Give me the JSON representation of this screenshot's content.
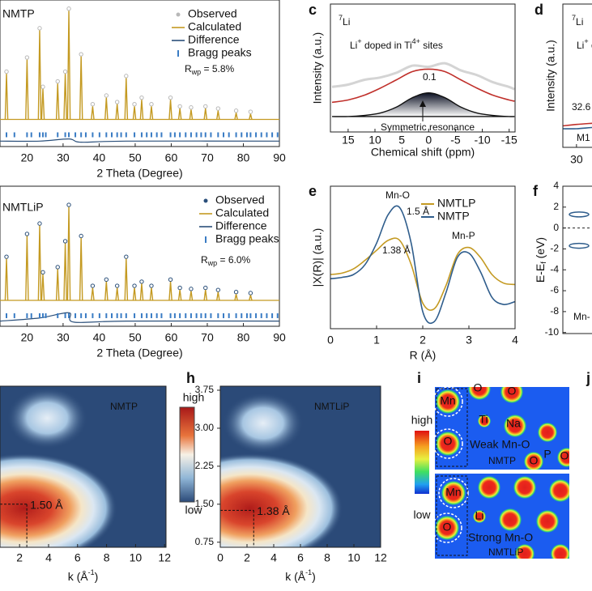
{
  "chart_data": [
    {
      "type": "xrd",
      "label": "NMTP",
      "x_label": "2 Theta (Degree)",
      "xlim": [
        12.5,
        90
      ],
      "ylim": [
        -0.25,
        1.1
      ],
      "xticks": [
        20,
        30,
        40,
        50,
        60,
        70,
        80,
        90
      ],
      "rwp": [
        "R",
        "wp",
        " = 5.8%"
      ],
      "series": [
        {
          "name": "Observed",
          "color": "#b8b8b8",
          "style": "dots",
          "x": [
            14.3,
            20,
            23.5,
            24.4,
            28.5,
            30.6,
            31.6,
            35,
            38.2,
            42,
            45,
            47.5,
            49.8,
            51.8,
            54.5,
            59.8,
            62.4,
            65.5,
            69.5,
            73,
            78,
            82
          ],
          "values": [
            0.44,
            0.57,
            0.84,
            0.3,
            0.35,
            0.44,
            1.02,
            0.6,
            0.14,
            0.22,
            0.16,
            0.4,
            0.14,
            0.2,
            0.14,
            0.2,
            0.12,
            0.11,
            0.12,
            0.1,
            0.08,
            0.07
          ]
        },
        {
          "name": "Calculated",
          "color": "#c49a22",
          "style": "spikes",
          "x": [
            14.3,
            20,
            23.5,
            24.4,
            28.5,
            30.6,
            31.6,
            35,
            38.2,
            42,
            45,
            47.5,
            49.8,
            51.8,
            54.5,
            59.8,
            62.4,
            65.5,
            69.5,
            73,
            78,
            82
          ],
          "values": [
            0.42,
            0.55,
            0.82,
            0.28,
            0.33,
            0.42,
            1.0,
            0.58,
            0.12,
            0.2,
            0.14,
            0.38,
            0.12,
            0.18,
            0.12,
            0.18,
            0.1,
            0.09,
            0.1,
            0.08,
            0.06,
            0.05
          ]
        },
        {
          "name": "Difference",
          "color": "#2a4f7a",
          "style": "line",
          "x": [
            12.5,
            23.5,
            31.6,
            35,
            47.5,
            90
          ],
          "values": [
            -0.2,
            -0.2,
            -0.18,
            -0.21,
            -0.2,
            -0.2
          ]
        },
        {
          "name": "Bragg peaks",
          "color": "#3a7cc4",
          "style": "ticks",
          "x": [
            14.3,
            16.5,
            20,
            21.2,
            23.5,
            24.4,
            25.2,
            28.5,
            30.6,
            31.6,
            33.4,
            35,
            36.3,
            38.2,
            40.1,
            42,
            43.5,
            45,
            46.1,
            47.5,
            49.8,
            51.8,
            53.2,
            54.5,
            56,
            57.3,
            59.8,
            61,
            62.4,
            64,
            65.5,
            67,
            68.3,
            69.5,
            71,
            73,
            74.5,
            76,
            78,
            79.5,
            81,
            82,
            83.5,
            85,
            86.5,
            88,
            89.5
          ]
        }
      ]
    },
    {
      "type": "xrd",
      "label": "NMTLiP",
      "x_label": "2 Theta (Degree)",
      "xlim": [
        12.5,
        90
      ],
      "ylim": [
        -0.25,
        1.1
      ],
      "xticks": [
        20,
        30,
        40,
        50,
        60,
        70,
        80,
        90
      ],
      "rwp": [
        "R",
        "wp",
        " = 6.0%"
      ],
      "series": [
        {
          "name": "Observed",
          "color": "#2a4f7a",
          "style": "dots",
          "x": [
            14.3,
            20,
            23.5,
            24.4,
            28.5,
            30.6,
            31.6,
            35,
            38.2,
            42,
            45,
            47.5,
            49.8,
            51.8,
            54.5,
            59.8,
            62.4,
            65.5,
            69.5,
            73,
            78,
            82
          ],
          "values": [
            0.42,
            0.64,
            0.74,
            0.27,
            0.32,
            0.57,
            0.92,
            0.62,
            0.14,
            0.2,
            0.14,
            0.42,
            0.14,
            0.18,
            0.14,
            0.2,
            0.12,
            0.11,
            0.12,
            0.1,
            0.08,
            0.07
          ]
        },
        {
          "name": "Calculated",
          "color": "#c49a22",
          "style": "spikes",
          "x": [
            14.3,
            20,
            23.5,
            24.4,
            28.5,
            30.6,
            31.6,
            35,
            38.2,
            42,
            45,
            47.5,
            49.8,
            51.8,
            54.5,
            59.8,
            62.4,
            65.5,
            69.5,
            73,
            78,
            82
          ],
          "values": [
            0.4,
            0.62,
            0.72,
            0.25,
            0.3,
            0.55,
            0.9,
            0.6,
            0.12,
            0.18,
            0.12,
            0.4,
            0.12,
            0.16,
            0.12,
            0.18,
            0.1,
            0.09,
            0.1,
            0.08,
            0.06,
            0.05
          ]
        },
        {
          "name": "Difference",
          "color": "#2a4f7a",
          "style": "line",
          "x": [
            12.5,
            23.5,
            31.6,
            33,
            47.5,
            90
          ],
          "values": [
            -0.2,
            -0.17,
            -0.12,
            -0.21,
            -0.2,
            -0.2
          ]
        },
        {
          "name": "Bragg peaks",
          "color": "#3a7cc4",
          "style": "ticks",
          "x": [
            14.3,
            16.5,
            20,
            21.2,
            23.5,
            24.4,
            25.2,
            28.5,
            30.6,
            31.6,
            33.4,
            35,
            36.3,
            38.2,
            40.1,
            42,
            43.5,
            45,
            46.1,
            47.5,
            49.8,
            51.8,
            53.2,
            54.5,
            56,
            57.3,
            59.8,
            61,
            62.4,
            64,
            65.5,
            67,
            68.3,
            69.5,
            71,
            73,
            74.5,
            76,
            78,
            79.5,
            81,
            82,
            83.5,
            85,
            86.5,
            88,
            89.5
          ]
        }
      ]
    },
    {
      "type": "line",
      "letter": "c",
      "x_label": "Chemical shift (ppm)",
      "y_label": "Intensity (a.u.)",
      "xlim": [
        18.3,
        -16.1
      ],
      "ylim": [
        -0.08,
        1
      ],
      "xticks": [
        15,
        10,
        5,
        0,
        -5,
        -10,
        -15
      ],
      "texts": {
        "nucleus": [
          "7",
          "Li"
        ],
        "site": [
          "Li",
          "+",
          " doped in Ti",
          "4+",
          " sites"
        ],
        "value": "0.1",
        "resonance": "Symmetric resonance"
      },
      "series": [
        {
          "color": "#d4d4d4",
          "x": [
            18,
            15,
            12,
            9,
            6,
            3,
            0,
            -3,
            -6,
            -9,
            -12,
            -15,
            -16
          ],
          "values": [
            0.3,
            0.32,
            0.36,
            0.38,
            0.42,
            0.48,
            0.47,
            0.5,
            0.44,
            0.4,
            0.34,
            0.3,
            0.28
          ]
        },
        {
          "color": "#c0302b",
          "x": [
            18,
            15,
            12,
            9,
            6,
            3,
            0,
            -3,
            -6,
            -9,
            -12,
            -15,
            -16
          ],
          "values": [
            0.17,
            0.19,
            0.23,
            0.29,
            0.36,
            0.43,
            0.45,
            0.43,
            0.36,
            0.29,
            0.23,
            0.19,
            0.18
          ]
        },
        {
          "color": "#111111",
          "fill": true,
          "x": [
            18,
            15,
            12,
            9,
            6,
            3,
            0,
            -3,
            -6,
            -9,
            -12,
            -15,
            -16
          ],
          "values": [
            0.05,
            0.05,
            0.06,
            0.08,
            0.13,
            0.21,
            0.25,
            0.21,
            0.13,
            0.08,
            0.06,
            0.05,
            0.05
          ]
        }
      ]
    },
    {
      "type": "line",
      "letter": "d",
      "y_label": "Intensity (a.u.)",
      "xlim": [
        31.4,
        26
      ],
      "ylim": [
        0,
        1
      ],
      "xticks": [
        30
      ],
      "texts": {
        "nucleus": [
          "7",
          "Li"
        ],
        "site": [
          "Li",
          "+",
          " d"
        ],
        "value": "32.6",
        "site_label": "M1"
      },
      "series": [
        {
          "color": "#c0302b",
          "x": [
            31.4,
            30,
            28,
            26
          ],
          "values": [
            0.15,
            0.16,
            0.17,
            0.18
          ]
        },
        {
          "color": "#2f5d8c",
          "x": [
            31.4,
            30,
            28,
            26
          ],
          "values": [
            0.13,
            0.13,
            0.14,
            0.14
          ]
        }
      ]
    },
    {
      "type": "line",
      "letter": "e",
      "x_label": "R (Å)",
      "y_label": "|X(R)| (a.u.)",
      "xlim": [
        0,
        4
      ],
      "ylim": [
        0,
        1
      ],
      "xticks": [
        0,
        1,
        2,
        3,
        4
      ],
      "texts": {
        "mn_o": "Mn-O",
        "blue_peak": "1.5 Å",
        "gold_peak": "1.38 Å",
        "mn_p": "Mn-P"
      },
      "series": [
        {
          "name": "NMTLP",
          "color": "#c49a22",
          "x": [
            0,
            0.25,
            0.5,
            0.75,
            1,
            1.25,
            1.5,
            1.75,
            2,
            2.25,
            2.5,
            2.75,
            3,
            3.25,
            3.5,
            3.75,
            4
          ],
          "values": [
            0.38,
            0.39,
            0.42,
            0.48,
            0.55,
            0.62,
            0.62,
            0.45,
            0.18,
            0.14,
            0.3,
            0.52,
            0.57,
            0.5,
            0.38,
            0.32,
            0.31
          ]
        },
        {
          "name": "NMTP",
          "color": "#2f5d8c",
          "x": [
            0,
            0.25,
            0.5,
            0.75,
            1,
            1.25,
            1.5,
            1.75,
            2,
            2.25,
            2.5,
            2.75,
            3,
            3.25,
            3.5,
            3.75,
            4
          ],
          "values": [
            0.35,
            0.36,
            0.38,
            0.45,
            0.6,
            0.8,
            0.85,
            0.6,
            0.12,
            0.05,
            0.25,
            0.5,
            0.53,
            0.4,
            0.22,
            0.17,
            0.19
          ]
        }
      ]
    },
    {
      "type": "dos",
      "letter": "f",
      "y_label": [
        "E-E",
        "f",
        " (eV)"
      ],
      "ylim": [
        -10.1,
        4
      ],
      "yticks": [
        4,
        2,
        0,
        -2,
        -4,
        -6,
        -8,
        -10
      ],
      "hline": 0,
      "texts": {
        "site": "Mn-"
      },
      "series": [
        {
          "color": "#2f5d8c",
          "values": [
            1.3,
            -1.7
          ]
        }
      ]
    },
    {
      "type": "heatmap",
      "label": "NMTP",
      "x_label": [
        "k (Å",
        "-1",
        ")"
      ],
      "xlim": [
        0.65,
        12.1
      ],
      "ylim": [
        0.65,
        3.83
      ],
      "xticks": [
        2,
        4,
        6,
        8,
        10,
        12
      ],
      "blobs": [
        {
          "x": 2.3,
          "y": 1.42,
          "value": 1
        },
        {
          "x": 3.9,
          "y": 3.2,
          "value": 0.35
        }
      ],
      "peak": {
        "x": 2.5,
        "y": 1.5,
        "label": "1.50 Å"
      }
    },
    {
      "type": "heatmap",
      "letter": "h",
      "label": "NMTLiP",
      "x_label": [
        "k (Å",
        "-1",
        ")"
      ],
      "xlim": [
        0,
        12
      ],
      "ylim": [
        0.65,
        3.83
      ],
      "xticks": [
        0,
        2,
        4,
        6,
        8,
        10,
        12
      ],
      "yticks": [
        3.75,
        {
          "value": 3,
          "label": "3.00"
        },
        2.25,
        {
          "value": 1.5,
          "label": "1.50"
        },
        0.75
      ],
      "colorbar_labels": [
        "high",
        "low"
      ],
      "blobs": [
        {
          "x": 2.2,
          "y": 1.42,
          "value": 1
        },
        {
          "x": 3.2,
          "y": 3.1,
          "value": 0.25
        }
      ],
      "peak": {
        "x": 2.5,
        "y": 1.38,
        "label": "1.38 Å"
      }
    }
  ],
  "panel_i": {
    "letter": "i",
    "colorbar_labels": [
      "high",
      "low"
    ],
    "maps": [
      {
        "labels": [
          "O",
          "O",
          "Mn",
          "Ti",
          "Na",
          "O",
          "O",
          "P",
          "O"
        ],
        "bond": "Weak Mn-O",
        "name": "NMTP"
      },
      {
        "labels": [
          "Mn",
          "Li",
          "O"
        ],
        "bond": "Strong Mn-O",
        "name": "NMTLiP"
      }
    ]
  },
  "panel_j": {
    "letter": "j"
  }
}
